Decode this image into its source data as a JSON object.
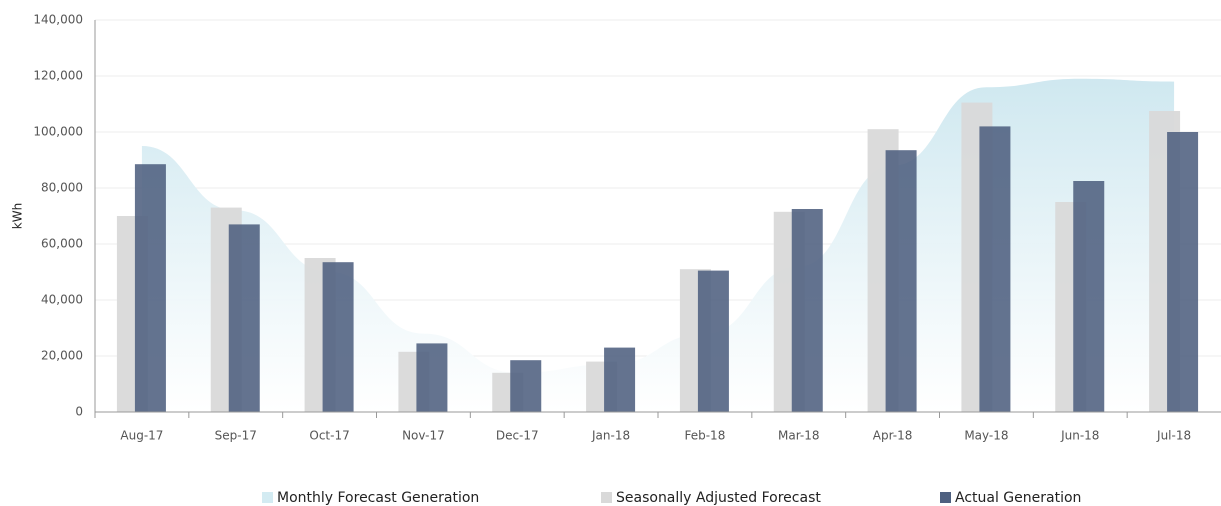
{
  "chart_data": {
    "type": "bar",
    "y_label": "kWh",
    "categories": [
      "Aug-17",
      "Sep-17",
      "Oct-17",
      "Nov-17",
      "Dec-17",
      "Jan-18",
      "Feb-18",
      "Mar-18",
      "Apr-18",
      "May-18",
      "Jun-18",
      "Jul-18"
    ],
    "series": [
      {
        "name": "Monthly Forecast Generation",
        "type": "area",
        "color": "#d3ebf2",
        "values": [
          95000,
          72000,
          50000,
          28000,
          14000,
          17000,
          28000,
          52000,
          88000,
          116000,
          119000,
          118000
        ]
      },
      {
        "name": "Seasonally Adjusted Forecast",
        "type": "bar",
        "color": "#d9d9d9",
        "values": [
          70000,
          73000,
          55000,
          21500,
          14000,
          18000,
          51000,
          71500,
          101000,
          110500,
          75000,
          107500
        ]
      },
      {
        "name": "Actual Generation",
        "type": "bar",
        "color": "#4e6080",
        "values": [
          88500,
          67000,
          53500,
          24500,
          18500,
          23000,
          50500,
          72500,
          93500,
          102000,
          82500,
          100000
        ]
      }
    ],
    "ylim": [
      0,
      140000
    ],
    "yticks": [
      0,
      {
        "value": 20000,
        "label": "20,000"
      },
      {
        "value": 40000,
        "label": "40,000"
      },
      {
        "value": 60000,
        "label": "60,000"
      },
      {
        "value": 80000,
        "label": "80,000"
      },
      {
        "value": 100000,
        "label": "100,000"
      },
      {
        "value": 120000,
        "label": "120,000"
      },
      {
        "value": 140000,
        "label": "140,000"
      }
    ],
    "grid": true
  }
}
